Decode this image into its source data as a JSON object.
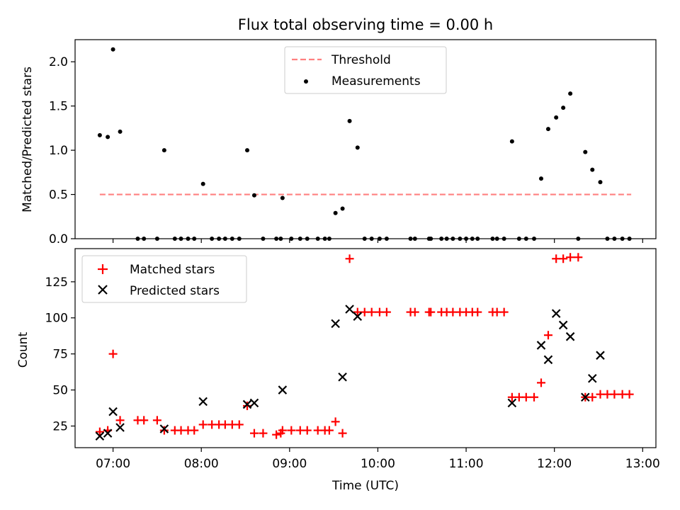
{
  "figure_title": "Flux total observing time = 0.00 h",
  "chart_data": [
    {
      "type": "scatter",
      "ylabel": "Matched/Predicted stars",
      "xlabel": "",
      "xlim": [
        6.57,
        13.15
      ],
      "ylim": [
        0,
        2.25
      ],
      "yticks": [
        0.0,
        0.5,
        1.0,
        1.5,
        2.0
      ],
      "ytick_labels": [
        "0.0",
        "0.5",
        "1.0",
        "1.5",
        "2.0"
      ],
      "xticks": [
        7,
        8,
        9,
        10,
        11,
        12,
        13
      ],
      "grid": false,
      "legend": {
        "placement": "top-center",
        "entries": [
          "Threshold",
          "Measurements"
        ]
      },
      "threshold": {
        "name": "Threshold",
        "value": 0.5,
        "x": [
          6.85,
          12.87
        ],
        "color": "#ff8080",
        "style": "dashed"
      },
      "measurements": {
        "name": "Measurements",
        "color": "#000000",
        "points": [
          [
            6.85,
            1.17
          ],
          [
            6.94,
            1.15
          ],
          [
            7.0,
            2.14
          ],
          [
            7.08,
            1.21
          ],
          [
            7.28,
            0.0
          ],
          [
            7.35,
            0.0
          ],
          [
            7.5,
            0.0
          ],
          [
            7.58,
            1.0
          ],
          [
            7.7,
            0.0
          ],
          [
            7.77,
            0.0
          ],
          [
            7.85,
            0.0
          ],
          [
            7.92,
            0.0
          ],
          [
            8.02,
            0.62
          ],
          [
            8.12,
            0.0
          ],
          [
            8.2,
            0.0
          ],
          [
            8.27,
            0.0
          ],
          [
            8.35,
            0.0
          ],
          [
            8.43,
            0.0
          ],
          [
            8.52,
            1.0
          ],
          [
            8.6,
            0.49
          ],
          [
            8.7,
            0.0
          ],
          [
            8.85,
            0.0
          ],
          [
            8.9,
            0.0
          ],
          [
            8.92,
            0.46
          ],
          [
            9.02,
            0.0
          ],
          [
            9.12,
            0.0
          ],
          [
            9.2,
            0.0
          ],
          [
            9.32,
            0.0
          ],
          [
            9.4,
            0.0
          ],
          [
            9.45,
            0.0
          ],
          [
            9.52,
            0.29
          ],
          [
            9.6,
            0.34
          ],
          [
            9.68,
            1.33
          ],
          [
            9.77,
            1.03
          ],
          [
            9.85,
            0.0
          ],
          [
            9.93,
            0.0
          ],
          [
            10.02,
            0.0
          ],
          [
            10.1,
            0.0
          ],
          [
            10.37,
            0.0
          ],
          [
            10.42,
            0.0
          ],
          [
            10.58,
            0.0
          ],
          [
            10.6,
            0.0
          ],
          [
            10.72,
            0.0
          ],
          [
            10.78,
            0.0
          ],
          [
            10.85,
            0.0
          ],
          [
            10.93,
            0.0
          ],
          [
            11.0,
            0.0
          ],
          [
            11.07,
            0.0
          ],
          [
            11.13,
            0.0
          ],
          [
            11.3,
            0.0
          ],
          [
            11.35,
            0.0
          ],
          [
            11.43,
            0.0
          ],
          [
            11.52,
            1.1
          ],
          [
            11.6,
            0.0
          ],
          [
            11.68,
            0.0
          ],
          [
            11.77,
            0.0
          ],
          [
            11.85,
            0.68
          ],
          [
            11.93,
            1.24
          ],
          [
            12.02,
            1.37
          ],
          [
            12.1,
            1.48
          ],
          [
            12.18,
            1.64
          ],
          [
            12.27,
            0.0
          ],
          [
            12.35,
            0.98
          ],
          [
            12.43,
            0.78
          ],
          [
            12.52,
            0.64
          ],
          [
            12.6,
            0.0
          ],
          [
            12.68,
            0.0
          ],
          [
            12.77,
            0.0
          ],
          [
            12.85,
            0.0
          ]
        ]
      }
    },
    {
      "type": "scatter",
      "ylabel": "Count",
      "xlabel": "Time (UTC)",
      "xlim": [
        6.57,
        13.15
      ],
      "ylim": [
        10,
        148
      ],
      "yticks": [
        25,
        50,
        75,
        100,
        125
      ],
      "ytick_labels": [
        "25",
        "50",
        "75",
        "100",
        "125"
      ],
      "xticks": [
        7,
        8,
        9,
        10,
        11,
        12,
        13
      ],
      "xtick_labels": [
        "07:00",
        "08:00",
        "09:00",
        "10:00",
        "11:00",
        "12:00",
        "13:00"
      ],
      "grid": false,
      "legend": {
        "placement": "top-left",
        "entries": [
          "Matched stars",
          "Predicted stars"
        ]
      },
      "series": [
        {
          "name": "Matched stars",
          "marker": "plus",
          "color": "#ff0000",
          "points": [
            [
              6.85,
              21
            ],
            [
              6.94,
              22
            ],
            [
              7.0,
              75
            ],
            [
              7.08,
              29
            ],
            [
              7.28,
              29
            ],
            [
              7.35,
              29
            ],
            [
              7.5,
              29
            ],
            [
              7.58,
              22
            ],
            [
              7.7,
              22
            ],
            [
              7.77,
              22
            ],
            [
              7.85,
              22
            ],
            [
              7.92,
              22
            ],
            [
              8.02,
              26
            ],
            [
              8.12,
              26
            ],
            [
              8.2,
              26
            ],
            [
              8.27,
              26
            ],
            [
              8.35,
              26
            ],
            [
              8.43,
              26
            ],
            [
              8.52,
              39
            ],
            [
              8.6,
              20
            ],
            [
              8.7,
              20
            ],
            [
              8.85,
              19
            ],
            [
              8.9,
              20
            ],
            [
              8.92,
              22
            ],
            [
              9.02,
              22
            ],
            [
              9.12,
              22
            ],
            [
              9.2,
              22
            ],
            [
              9.32,
              22
            ],
            [
              9.4,
              22
            ],
            [
              9.45,
              22
            ],
            [
              9.52,
              28
            ],
            [
              9.6,
              20
            ],
            [
              9.68,
              141
            ],
            [
              9.77,
              104
            ],
            [
              9.85,
              104
            ],
            [
              9.93,
              104
            ],
            [
              10.02,
              104
            ],
            [
              10.1,
              104
            ],
            [
              10.37,
              104
            ],
            [
              10.42,
              104
            ],
            [
              10.58,
              104
            ],
            [
              10.6,
              104
            ],
            [
              10.72,
              104
            ],
            [
              10.78,
              104
            ],
            [
              10.85,
              104
            ],
            [
              10.93,
              104
            ],
            [
              11.0,
              104
            ],
            [
              11.07,
              104
            ],
            [
              11.13,
              104
            ],
            [
              11.3,
              104
            ],
            [
              11.35,
              104
            ],
            [
              11.43,
              104
            ],
            [
              11.52,
              45
            ],
            [
              11.6,
              45
            ],
            [
              11.68,
              45
            ],
            [
              11.77,
              45
            ],
            [
              11.85,
              55
            ],
            [
              11.93,
              88
            ],
            [
              12.02,
              141
            ],
            [
              12.1,
              141
            ],
            [
              12.18,
              142
            ],
            [
              12.27,
              142
            ],
            [
              12.35,
              45
            ],
            [
              12.43,
              45
            ],
            [
              12.52,
              47
            ],
            [
              12.6,
              47
            ],
            [
              12.68,
              47
            ],
            [
              12.77,
              47
            ],
            [
              12.85,
              47
            ]
          ]
        },
        {
          "name": "Predicted stars",
          "marker": "x",
          "color": "#000000",
          "points": [
            [
              6.85,
              18
            ],
            [
              6.94,
              20
            ],
            [
              7.0,
              35
            ],
            [
              7.08,
              24
            ],
            [
              7.58,
              23
            ],
            [
              8.02,
              42
            ],
            [
              8.52,
              40
            ],
            [
              8.6,
              41
            ],
            [
              8.92,
              50
            ],
            [
              9.52,
              96
            ],
            [
              9.6,
              59
            ],
            [
              9.68,
              106
            ],
            [
              9.77,
              101
            ],
            [
              11.52,
              41
            ],
            [
              11.85,
              81
            ],
            [
              11.93,
              71
            ],
            [
              12.02,
              103
            ],
            [
              12.1,
              95
            ],
            [
              12.18,
              87
            ],
            [
              12.35,
              45
            ],
            [
              12.43,
              58
            ],
            [
              12.52,
              74
            ]
          ]
        }
      ]
    }
  ]
}
